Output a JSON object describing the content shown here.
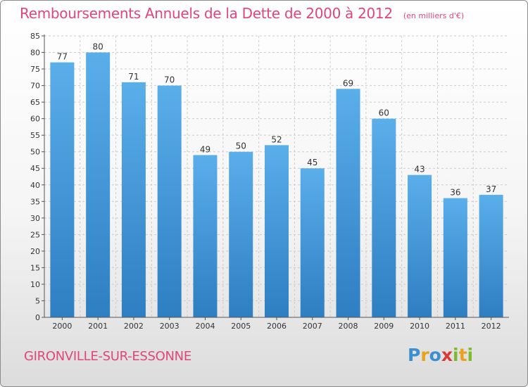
{
  "header": {
    "title": "Remboursements Annuels de la Dette de 2000 à 2012",
    "unit": "(en milliers d'€)"
  },
  "footer": {
    "commune": "GIRONVILLE-SUR-ESSONNE",
    "logo_text": "Proxiti",
    "logo_colors": [
      "#3a8fd0",
      "#e8a21e",
      "#3a8fd0",
      "#d83a3a",
      "#7cbb2c",
      "#e8a21e",
      "#7cbb2c"
    ]
  },
  "colors": {
    "title": "#e0457b",
    "bar_top": "#5aaeea",
    "bar_bottom": "#2e7ec2",
    "grid": "#cccccc",
    "axis": "#555555",
    "label": "#333333"
  },
  "chart_data": {
    "type": "bar",
    "title": "Remboursements Annuels de la Dette de 2000 à 2012",
    "categories": [
      "2000",
      "2001",
      "2002",
      "2003",
      "2004",
      "2005",
      "2006",
      "2007",
      "2008",
      "2009",
      "2010",
      "2011",
      "2012"
    ],
    "values": [
      77,
      80,
      71,
      70,
      49,
      50,
      52,
      45,
      69,
      60,
      43,
      36,
      37
    ],
    "ylim": [
      0,
      85
    ],
    "yticks": [
      0,
      5,
      10,
      15,
      20,
      25,
      30,
      35,
      40,
      45,
      50,
      55,
      60,
      65,
      70,
      75,
      80,
      85
    ],
    "grid": true,
    "data_labels": true
  }
}
